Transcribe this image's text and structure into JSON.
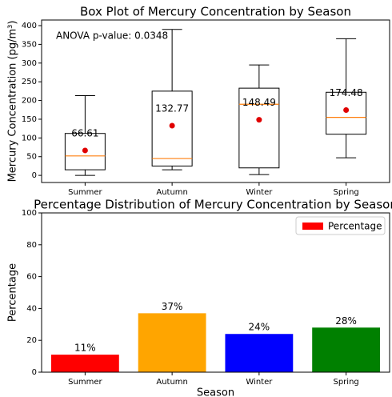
{
  "chart_data": [
    {
      "type": "box",
      "title": "Box Plot of Mercury Concentration by Season",
      "y_label": "Mercury Concentration (pg/m³)",
      "annotation": "ANOVA p-value: 0.0348",
      "categories": [
        "Summer",
        "Autumn",
        "Winter",
        "Spring"
      ],
      "whisker_low": [
        0,
        15,
        2,
        47
      ],
      "q1": [
        15,
        25,
        20,
        110
      ],
      "median": [
        52,
        45,
        190,
        155
      ],
      "q3": [
        112,
        225,
        233,
        222
      ],
      "whisker_high": [
        213,
        390,
        295,
        365
      ],
      "mean": [
        66.61,
        132.77,
        148.49,
        174.48
      ],
      "box_color": "#000000",
      "median_color": "#ff7f0e",
      "mean_color": "#e00000",
      "ylim": [
        -19,
        415
      ],
      "yticks": [
        0,
        50,
        100,
        150,
        200,
        250,
        300,
        350,
        400
      ]
    },
    {
      "type": "bar",
      "title": "Percentage Distribution of Mercury Concentration by Season",
      "x_label": "Season",
      "y_label": "Percentage",
      "categories": [
        "Summer",
        "Autumn",
        "Winter",
        "Spring"
      ],
      "series": [
        {
          "name": "Percentage",
          "color": "#ff0000",
          "colors": [
            "#ff0000",
            "#ffa500",
            "#0000ff",
            "#008000"
          ],
          "values": [
            11,
            37,
            24,
            28
          ],
          "value_labels": [
            "11%",
            "37%",
            "24%",
            "28%"
          ]
        }
      ],
      "ylim": [
        0,
        100
      ],
      "yticks": [
        0,
        20,
        40,
        60,
        80,
        100
      ],
      "legend": "upper right"
    }
  ]
}
